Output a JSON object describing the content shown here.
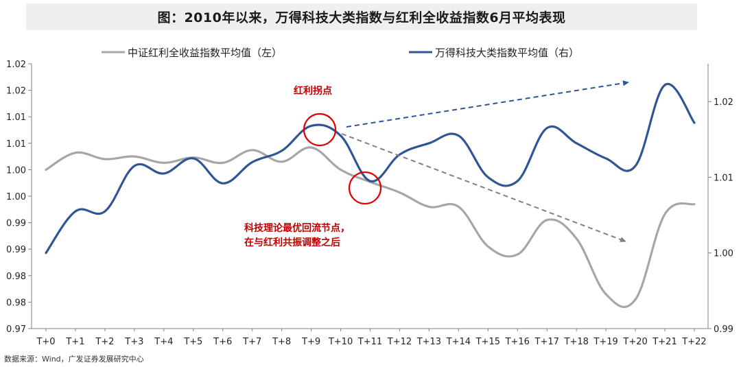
{
  "title": "图：2010年以来，万得科技大类指数与红利全收益指数6月平均表现",
  "source": "数据来源：Wind，广发证券发展研究中心",
  "colors": {
    "left_series": "#a6a6a6",
    "right_series": "#2f5597",
    "annotation_red": "#c00000",
    "up_arrow": "#2f5597",
    "down_arrow": "#808080",
    "axis": "#7f7f7f",
    "title_bg": "#efefef"
  },
  "chart_data": {
    "type": "line",
    "x": [
      "T+0",
      "T+1",
      "T+2",
      "T+3",
      "T+4",
      "T+5",
      "T+6",
      "T+7",
      "T+8",
      "T+9",
      "T+10",
      "T+11",
      "T+12",
      "T+13",
      "T+14",
      "T+15",
      "T+16",
      "T+17",
      "T+18",
      "T+19",
      "T+20",
      "T+21",
      "T+22"
    ],
    "y_left": {
      "ylim": [
        0.97,
        1.02
      ],
      "ticks": [
        0.97,
        0.975,
        0.98,
        0.985,
        0.99,
        0.995,
        1.0,
        1.005,
        1.01,
        1.015,
        1.02
      ],
      "tick_labels": [
        "0.97",
        "0.98",
        "0.98",
        "0.99",
        "0.99",
        "1.00",
        "1.00",
        "1.01",
        "1.01",
        "1.02",
        "1.02"
      ]
    },
    "y_right": {
      "ylim": [
        0.99,
        1.025
      ],
      "ticks": [
        0.99,
        1.0,
        1.01,
        1.02
      ],
      "tick_labels": [
        "0.99",
        "1.00",
        "1.01",
        "1.02"
      ]
    },
    "series": [
      {
        "name": "中证红利全收益指数平均值（左）",
        "axis": "left",
        "values": [
          1.0,
          1.0032,
          1.002,
          1.0025,
          1.0013,
          1.0023,
          1.0013,
          1.0037,
          1.0015,
          1.0042,
          1.0,
          0.9977,
          0.9957,
          0.993,
          0.993,
          0.9855,
          0.984,
          0.9905,
          0.987,
          0.9765,
          0.9755,
          0.9916,
          0.9935
        ]
      },
      {
        "name": "万得科技大类指数平均值（右）",
        "axis": "right",
        "values": [
          1.0,
          1.0055,
          1.0055,
          1.0115,
          1.0105,
          1.0125,
          1.0092,
          1.012,
          1.0135,
          1.0168,
          1.0155,
          1.0095,
          1.013,
          1.0145,
          1.0155,
          1.01,
          1.0095,
          1.0165,
          1.0145,
          1.0125,
          1.0115,
          1.0222,
          1.0172
        ]
      }
    ],
    "legend_position": "top",
    "annotations": [
      {
        "text": "红利拐点"
      },
      {
        "text": "科技理论最优回流节点，"
      },
      {
        "text": "在与红利共振调整之后"
      }
    ]
  }
}
